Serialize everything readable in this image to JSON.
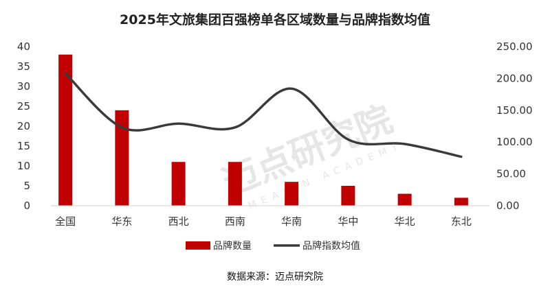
{
  "chart_data": {
    "type": "bar+line",
    "title": "2025年文旅集团百强榜单各区域数量与品牌指数均值",
    "categories": [
      "全国",
      "华东",
      "西北",
      "西南",
      "华南",
      "华中",
      "华北",
      "东北"
    ],
    "series": [
      {
        "name": "品牌数量",
        "type": "bar",
        "axis": "left",
        "color": "#c00000",
        "values": [
          38,
          24,
          11,
          11,
          6,
          5,
          3,
          2
        ]
      },
      {
        "name": "品牌指数均值",
        "type": "line",
        "axis": "right",
        "smooth": true,
        "color": "#3a3a3a",
        "values": [
          208,
          123,
          129,
          123,
          184,
          104,
          97,
          77
        ]
      }
    ],
    "left_axis": {
      "ylim": [
        0,
        40
      ],
      "ticks": [
        "0",
        "5",
        "10",
        "15",
        "20",
        "25",
        "30",
        "35",
        "40"
      ]
    },
    "right_axis": {
      "ylim": [
        0,
        250
      ],
      "ticks": [
        "0.00",
        "50.00",
        "100.00",
        "150.00",
        "200.00",
        "250.00"
      ]
    },
    "grid": false,
    "legend_position": "bottom",
    "source": "数据来源：迈点研究院",
    "watermark": "迈点研究院 MEADIN ACADEMY"
  }
}
